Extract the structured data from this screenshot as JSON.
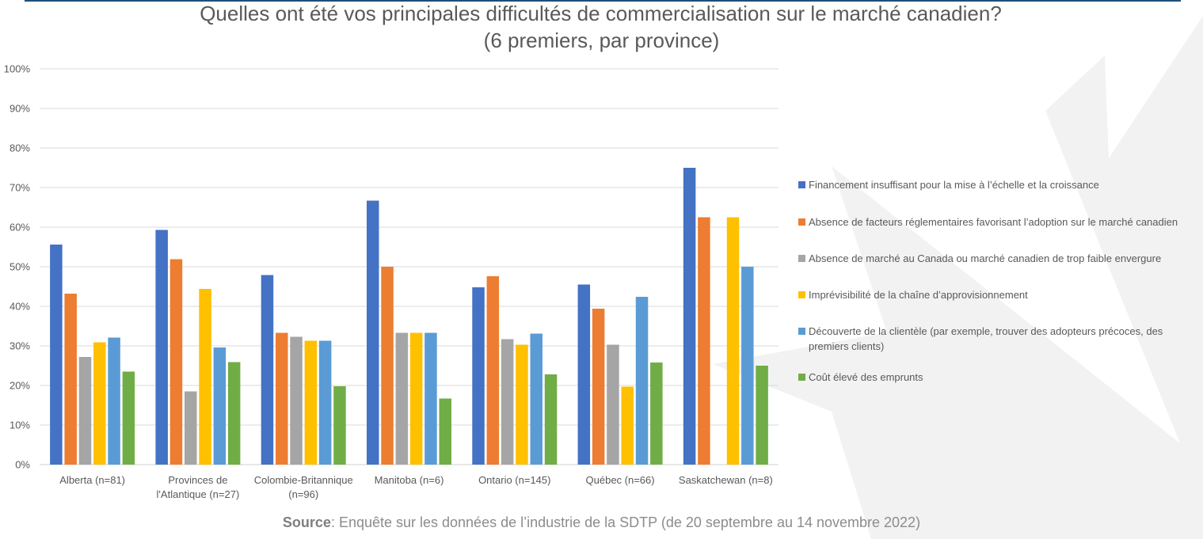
{
  "title": {
    "line1": "Quelles ont été vos principales difficultés de commercialisation sur le marché canadien?",
    "line2": "(6 premiers, par province)"
  },
  "source": {
    "label": "Source",
    "text": ": Enquête sur les données de l’industrie de la SDTP (de 20 septembre au 14 novembre 2022)"
  },
  "chart_data": {
    "type": "bar",
    "title": "Quelles ont été vos principales difficultés de commercialisation sur le marché canadien? (6 premiers, par province)",
    "xlabel": "",
    "ylabel": "",
    "ylim": [
      0,
      100
    ],
    "yticks": [
      "0%",
      "10%",
      "20%",
      "30%",
      "40%",
      "50%",
      "60%",
      "70%",
      "80%",
      "90%",
      "100%"
    ],
    "grid": true,
    "legend_position": "right",
    "categories": [
      [
        "Alberta (n=81)"
      ],
      [
        "Provinces de",
        "l'Atlantique (n=27)"
      ],
      [
        "Colombie-Britannique",
        "(n=96)"
      ],
      [
        "Manitoba (n=6)"
      ],
      [
        "Ontario (n=145)"
      ],
      [
        "Québec (n=66)"
      ],
      [
        "Saskatchewan (n=8)"
      ]
    ],
    "series": [
      {
        "name": "Financement insuffisant pour la mise à l’échelle et la croissance",
        "color": "#4472c4",
        "values": [
          55.6,
          59.3,
          47.9,
          66.7,
          44.8,
          45.5,
          75.0
        ]
      },
      {
        "name": "Absence de facteurs réglementaires favorisant l’adoption sur le marché canadien",
        "color": "#ed7d31",
        "values": [
          43.2,
          51.9,
          33.3,
          50.0,
          47.6,
          39.4,
          62.5
        ]
      },
      {
        "name": "Absence de marché au Canada ou marché canadien de trop faible envergure",
        "color": "#a5a5a5",
        "values": [
          27.2,
          18.5,
          32.3,
          33.3,
          31.7,
          30.3,
          0
        ]
      },
      {
        "name": "Imprévisibilité de la chaîne d’approvisionnement",
        "color": "#ffc000",
        "values": [
          30.9,
          44.4,
          31.3,
          33.3,
          30.3,
          19.7,
          62.5
        ]
      },
      {
        "name": "Découverte de la clientèle (par exemple, trouver des adopteurs précoces, des premiers clients)",
        "color": "#5b9bd5",
        "values": [
          32.1,
          29.6,
          31.3,
          33.3,
          33.1,
          42.4,
          50.0
        ]
      },
      {
        "name": "Coût élevé des emprunts",
        "color": "#70ad47",
        "values": [
          23.5,
          25.9,
          19.8,
          16.7,
          22.8,
          25.8,
          25.0
        ]
      }
    ]
  }
}
